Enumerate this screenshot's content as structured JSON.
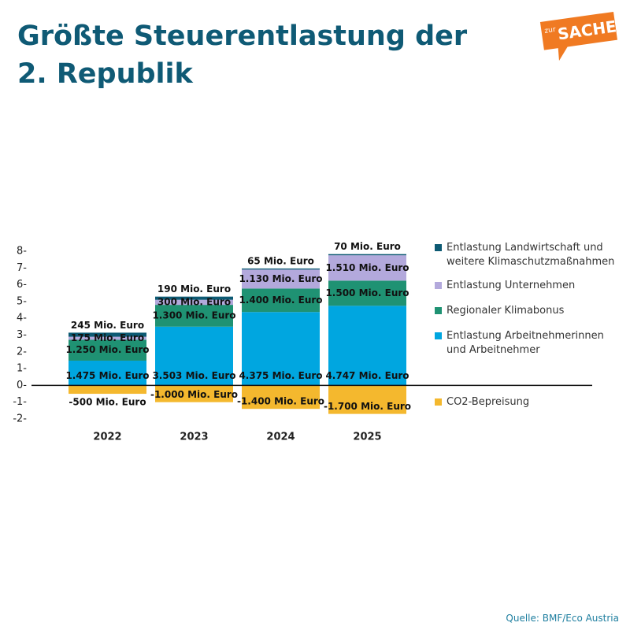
{
  "chart_data": {
    "type": "stacked_bar",
    "title": "Größte Steuerentlastung der 2. Republik",
    "source": "Quelle: BMF/Eco Austria",
    "logo": {
      "small": "zur",
      "big": "SACHE"
    },
    "categories": [
      "2022",
      "2023",
      "2024",
      "2025"
    ],
    "series": [
      {
        "name": "Entlastung Arbeitnehmerinnen und Arbeitnehmer",
        "color": "#00a6e0",
        "values": [
          1.475,
          3.503,
          4.375,
          4.747
        ],
        "value_labels": [
          "1.475 Mio. Euro",
          "3.503 Mio. Euro",
          "4.375 Mio. Euro",
          "4.747 Mio. Euro"
        ]
      },
      {
        "name": "Regionaler Klimabonus",
        "color": "#1f9273",
        "values": [
          1.25,
          1.3,
          1.4,
          1.5
        ],
        "value_labels": [
          "1.250 Mio. Euro",
          "1.300 Mio. Euro",
          "1.400 Mio. Euro",
          "1.500 Mio. Euro"
        ]
      },
      {
        "name": "Entlastung Unternehmen",
        "color": "#b3a9dc",
        "values": [
          0.175,
          0.3,
          1.13,
          1.51
        ],
        "value_labels": [
          "175 Mio. Euro",
          "300 Mio. Euro",
          "1.130 Mio. Euro",
          "1.510 Mio. Euro"
        ]
      },
      {
        "name": "Entlastung Landwirtschaft und weitere Klimaschutzmaßnahmen",
        "color": "#0d5a73",
        "values": [
          0.245,
          0.19,
          0.065,
          0.07
        ],
        "value_labels": [
          "245 Mio. Euro",
          "190 Mio. Euro",
          "65 Mio. Euro",
          "70 Mio. Euro"
        ]
      },
      {
        "name": "CO2-Bepreisung",
        "color": "#f4b82e",
        "values": [
          -0.5,
          -1.0,
          -1.4,
          -1.7
        ],
        "value_labels": [
          "-500 Mio. Euro",
          "-1.000 Mio. Euro",
          "-1.400 Mio. Euro",
          "-1.700 Mio. Euro"
        ]
      }
    ],
    "legend_order": [
      3,
      2,
      1,
      0,
      4
    ],
    "ylim": [
      -2,
      8
    ],
    "yticks": [
      {
        "value": -2,
        "label": "-2-"
      },
      {
        "value": -1,
        "label": "-1-"
      },
      {
        "value": 0,
        "label": "0-"
      },
      {
        "value": 1,
        "label": "1-"
      },
      {
        "value": 2,
        "label": "2-"
      },
      {
        "value": 3,
        "label": "3-"
      },
      {
        "value": 4,
        "label": "4-"
      },
      {
        "value": 5,
        "label": "5-"
      },
      {
        "value": 6,
        "label": "6-"
      },
      {
        "value": 7,
        "label": "7-"
      },
      {
        "value": 8,
        "label": "8-"
      }
    ]
  }
}
